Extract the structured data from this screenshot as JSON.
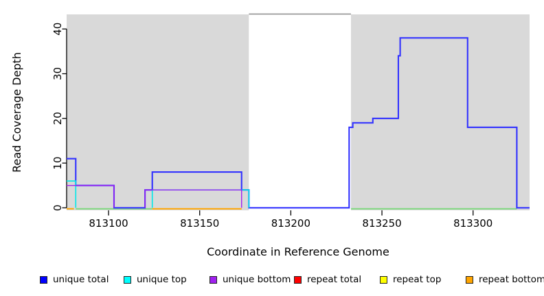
{
  "chart_data": {
    "type": "line",
    "subtype": "step-coverage",
    "title": "",
    "xlabel": "Coordinate in Reference Genome",
    "ylabel": "Read Coverage Depth",
    "x_ticks": [
      813100,
      813150,
      813200,
      813250,
      813300
    ],
    "y_ticks": [
      0,
      10,
      20,
      30,
      40
    ],
    "x_range": [
      813077,
      813331
    ],
    "y_range": [
      0,
      43.2
    ],
    "grid": false,
    "background_regions": [
      {
        "x1": 813077,
        "x2": 813177,
        "color": "#d9d9d9"
      },
      {
        "x1": 813177,
        "x2": 813233,
        "color": "#ffffff",
        "top_border": "#888888"
      },
      {
        "x1": 813233,
        "x2": 813331,
        "color": "#d9d9d9"
      }
    ],
    "series": [
      {
        "name": "unique total",
        "color": "#3232ff",
        "width": 2.1,
        "draw_zero_runs": true,
        "steps": [
          [
            813077,
            11
          ],
          [
            813082,
            5
          ],
          [
            813103,
            0
          ],
          [
            813120,
            4
          ],
          [
            813124,
            8
          ],
          [
            813173,
            4
          ],
          [
            813177,
            0
          ],
          [
            813232,
            18
          ],
          [
            813234,
            19
          ],
          [
            813245,
            20
          ],
          [
            813259,
            34
          ],
          [
            813260,
            38
          ],
          [
            813297,
            18
          ],
          [
            813324,
            0
          ],
          [
            813331,
            0
          ]
        ]
      },
      {
        "name": "unique top",
        "color": "#00e8e8",
        "width": 1.6,
        "draw_zero_runs": false,
        "steps": [
          [
            813077,
            6
          ],
          [
            813082,
            0
          ],
          [
            813124,
            4
          ],
          [
            813177,
            0
          ],
          [
            813331,
            0
          ]
        ]
      },
      {
        "name": "unique bottom",
        "color": "#a020f0",
        "width": 1.4,
        "draw_zero_runs": false,
        "steps": [
          [
            813077,
            5
          ],
          [
            813103,
            0
          ],
          [
            813120,
            4
          ],
          [
            813173,
            0
          ],
          [
            813331,
            0
          ]
        ]
      }
    ],
    "baseline_segments": [
      {
        "x1": 813077,
        "x2": 813081,
        "color": "#ffa500"
      },
      {
        "x1": 813082,
        "x2": 813124,
        "color": "#7fd87f"
      },
      {
        "x1": 813124,
        "x2": 813173,
        "color": "#ffa500"
      },
      {
        "x1": 813233,
        "x2": 813324,
        "color": "#7fd87f"
      }
    ]
  },
  "legend": {
    "items": [
      {
        "label": "unique total",
        "color": "#0000ff"
      },
      {
        "label": "unique top",
        "color": "#00ffff"
      },
      {
        "label": "unique bottom",
        "color": "#a020f0"
      },
      {
        "label": "repeat total",
        "color": "#ff0000"
      },
      {
        "label": "repeat top",
        "color": "#ffff00"
      },
      {
        "label": "repeat bottom",
        "color": "#ffa500"
      }
    ]
  }
}
